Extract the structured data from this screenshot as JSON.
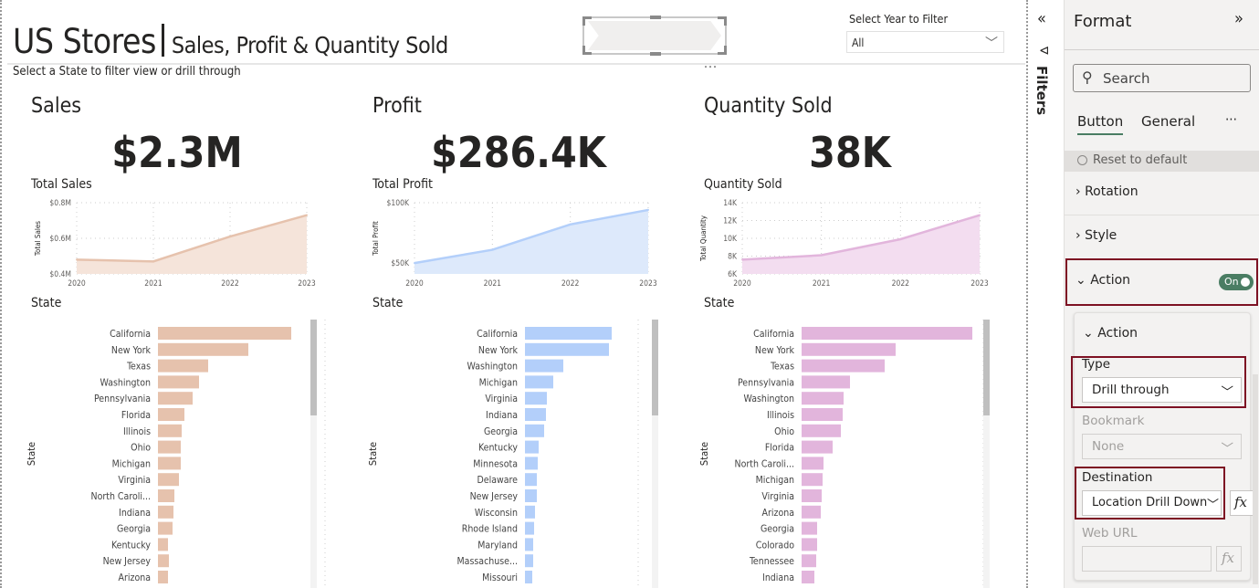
{
  "report": {
    "title_main": "US Stores",
    "title_sub": "Sales, Profit & Quantity Sold",
    "subtitle": "Select a State to filter view or drill through",
    "more": "...",
    "slicer": {
      "label": "Select Year to Filter",
      "value": "All"
    }
  },
  "cards": [
    {
      "heading": "Sales",
      "value": "$2.3M",
      "line_title": "Total Sales",
      "state_title": "State",
      "color": "#e6c2ad",
      "fill": "#f5e4da"
    },
    {
      "heading": "Profit",
      "value": "$286.4K",
      "line_title": "Total Profit",
      "state_title": "State",
      "color": "#b3cffa",
      "fill": "#dde9fb"
    },
    {
      "heading": "Quantity Sold",
      "value": "38K",
      "line_title": "Quantity Sold",
      "state_title": "State",
      "color": "#e2b5dc",
      "fill": "#f3ddf0"
    }
  ],
  "chart_data": [
    {
      "type": "area",
      "title": "Total Sales",
      "ylabel": "Total Sales",
      "x": [
        "2020",
        "2021",
        "2022",
        "2023"
      ],
      "values": [
        0.48,
        0.47,
        0.61,
        0.73
      ],
      "unit": "$M",
      "ylim": [
        0.4,
        0.8
      ],
      "yticks": [
        "$0.4M",
        "$0.6M",
        "$0.8M"
      ],
      "ytick_values": [
        0.4,
        0.6,
        0.8
      ],
      "grid": true
    },
    {
      "type": "area",
      "title": "Total Profit",
      "ylabel": "Total Profit",
      "x": [
        "2020",
        "2021",
        "2022",
        "2023"
      ],
      "values": [
        50,
        61,
        82,
        94
      ],
      "unit": "$K",
      "ylim": [
        41,
        100
      ],
      "yticks": [
        "$50K",
        "$100K"
      ],
      "ytick_values": [
        50,
        100
      ],
      "grid": true
    },
    {
      "type": "area",
      "title": "Quantity Sold",
      "ylabel": "Total Quantity",
      "x": [
        "2020",
        "2021",
        "2022",
        "2023"
      ],
      "values": [
        7.6,
        8.1,
        9.9,
        12.6
      ],
      "unit": "K",
      "ylim": [
        6,
        14
      ],
      "yticks": [
        "6K",
        "8K",
        "10K",
        "12K",
        "14K"
      ],
      "ytick_values": [
        6,
        8,
        10,
        12,
        14
      ],
      "grid": true
    },
    {
      "type": "bar",
      "orientation": "horizontal",
      "ylabel": "State",
      "note": "relative values, no axis printed",
      "categories": [
        "California",
        "New York",
        "Texas",
        "Washington",
        "Pennsylvania",
        "Florida",
        "Illinois",
        "Ohio",
        "Michigan",
        "Virginia",
        "North Caroli...",
        "Indiana",
        "Georgia",
        "Kentucky",
        "New Jersey",
        "Arizona"
      ],
      "values": [
        146,
        99,
        55,
        45,
        38,
        29,
        26,
        25,
        25,
        23,
        18,
        17,
        16,
        11,
        12,
        11
      ],
      "xlim": [
        0,
        183
      ]
    },
    {
      "type": "bar",
      "orientation": "horizontal",
      "ylabel": "State",
      "categories": [
        "California",
        "New York",
        "Washington",
        "Michigan",
        "Virginia",
        "Indiana",
        "Georgia",
        "Kentucky",
        "Minnesota",
        "Delaware",
        "New Jersey",
        "Wisconsin",
        "Rhode Island",
        "Maryland",
        "Massachuse...",
        "Missouri"
      ],
      "values": [
        95,
        92,
        42,
        31,
        24,
        23,
        21,
        15,
        14,
        13,
        13,
        11,
        10,
        9,
        9,
        8
      ],
      "xlim": [
        0,
        124
      ]
    },
    {
      "type": "bar",
      "orientation": "horizontal",
      "ylabel": "State",
      "categories": [
        "California",
        "New York",
        "Texas",
        "Pennsylvania",
        "Washington",
        "Illinois",
        "Ohio",
        "Florida",
        "North Caroli...",
        "Michigan",
        "Virginia",
        "Arizona",
        "Georgia",
        "Colorado",
        "Tennessee",
        "Indiana"
      ],
      "values": [
        187,
        103,
        91,
        53,
        46,
        45,
        43,
        34,
        24,
        23,
        22,
        21,
        17,
        17,
        16,
        14
      ],
      "xlim": [
        0,
        199
      ]
    }
  ],
  "filters": {
    "label": "Filters"
  },
  "format": {
    "title": "Format",
    "search_placeholder": "Search",
    "tabs": [
      "Button",
      "General"
    ],
    "more": "···",
    "reset": "Reset to default",
    "sections": [
      "Rotation",
      "Style",
      "Action"
    ],
    "toggle": "On",
    "action": {
      "heading": "Action",
      "type_label": "Type",
      "type_value": "Drill through",
      "bookmark_label": "Bookmark",
      "bookmark_value": "None",
      "dest_label": "Destination",
      "dest_value": "Location Drill Down",
      "weburl_label": "Web URL",
      "fx": "fx"
    },
    "accent": "#4a7d63",
    "highlight": "#7d1123"
  }
}
